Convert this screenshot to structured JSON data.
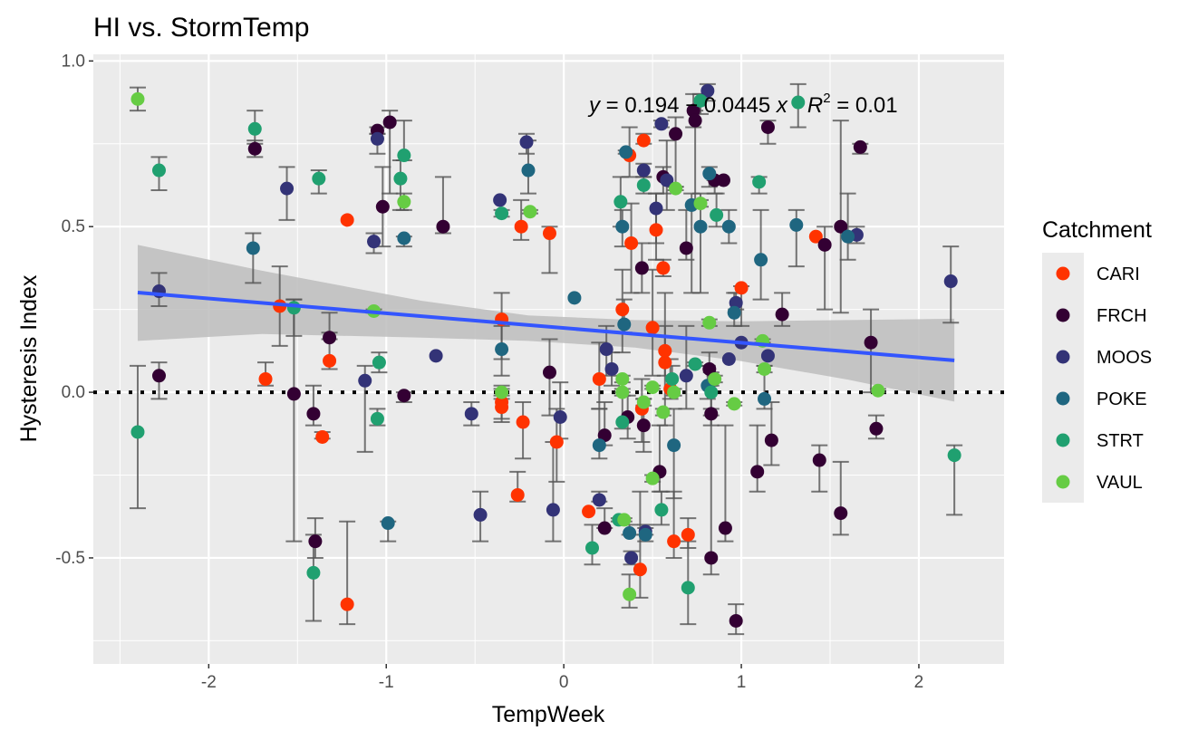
{
  "chart_data": {
    "type": "scatter",
    "title": "HI vs. StormTemp",
    "xlabel": "TempWeek",
    "ylabel": "Hysteresis Index",
    "xlim": [
      -2.65,
      2.48
    ],
    "ylim": [
      -0.82,
      1.02
    ],
    "x_ticks": [
      -2,
      -1,
      0,
      1,
      2
    ],
    "x_tick_labels": [
      "-2",
      "-1",
      "0",
      "1",
      "2"
    ],
    "y_ticks": [
      -0.5,
      0.0,
      0.5,
      1.0
    ],
    "y_tick_labels": [
      "-0.5",
      "0.0",
      "0.5",
      "1.0"
    ],
    "grid": true,
    "legend": {
      "title": "Catchment",
      "placement": "right",
      "entries": [
        {
          "name": "CARI",
          "color": "#FF3300"
        },
        {
          "name": "FRCH",
          "color": "#330033"
        },
        {
          "name": "MOOS",
          "color": "#333377"
        },
        {
          "name": "POKE",
          "color": "#1F6680"
        },
        {
          "name": "STRT",
          "color": "#20A070"
        },
        {
          "name": "VAUL",
          "color": "#66CC44"
        }
      ]
    },
    "reference_line": {
      "y": 0,
      "style": "dotted"
    },
    "regression": {
      "intercept": 0.194,
      "slope": -0.0445,
      "x_range": [
        -2.4,
        2.2
      ],
      "ci_lower": [
        0.155,
        0.176,
        0.165,
        0.155,
        0.135,
        0.094,
        0.038,
        -0.028
      ],
      "ci_upper": [
        0.445,
        0.367,
        0.276,
        0.232,
        0.218,
        0.214,
        0.218,
        0.222
      ],
      "ci_x": [
        -2.4,
        -1.7,
        -0.8,
        -0.2,
        0.4,
        1.0,
        1.6,
        2.2
      ],
      "line_color": "#3355FF",
      "band_color": "#BDBDBD"
    },
    "annotation": {
      "y_label": "y",
      "equation": " = 0.194 − 0.0445 ",
      "x_label": "x",
      "r_label": "R",
      "r_exp": "2",
      "r_value": " = 0.01"
    },
    "series": [
      {
        "name": "CARI",
        "color": "#FF3300",
        "points": [
          [
            -1.22,
            0.52,
            0.52,
            0.52
          ],
          [
            -1.6,
            0.26,
            0.38,
            0.14
          ],
          [
            -1.68,
            0.04,
            0.09,
            0.02
          ],
          [
            -1.32,
            0.095,
            0.18,
            0.07
          ],
          [
            -1.36,
            -0.135,
            -0.12,
            -0.14
          ],
          [
            -1.22,
            -0.64,
            -0.39,
            -0.7
          ],
          [
            -0.35,
            0.22,
            0.3,
            0.1
          ],
          [
            -0.35,
            -0.03,
            0.02,
            -0.08
          ],
          [
            -0.35,
            -0.045,
            -0.02,
            -0.09
          ],
          [
            -0.24,
            0.5,
            0.58,
            0.46
          ],
          [
            -0.23,
            -0.09,
            -0.03,
            -0.2
          ],
          [
            -0.26,
            -0.31,
            -0.24,
            -0.33
          ],
          [
            -0.08,
            0.48,
            0.5,
            0.36
          ],
          [
            -0.04,
            -0.15,
            -0.05,
            -0.27
          ],
          [
            0.14,
            -0.36,
            -0.36,
            -0.36
          ],
          [
            0.2,
            0.04,
            0.15,
            -0.05
          ],
          [
            0.33,
            0.25,
            0.37,
            0.12
          ],
          [
            0.37,
            0.715,
            0.8,
            0.65
          ],
          [
            0.38,
            0.45,
            0.57,
            0.3
          ],
          [
            0.45,
            0.76,
            0.78,
            0.75
          ],
          [
            0.5,
            0.195,
            0.37,
            0.05
          ],
          [
            0.52,
            0.49,
            0.6,
            0.4
          ],
          [
            0.56,
            0.375,
            0.4,
            0.35
          ],
          [
            0.57,
            0.09,
            0.3,
            -0.1
          ],
          [
            0.57,
            0.125,
            0.2,
            0.05
          ],
          [
            0.44,
            -0.05,
            0.04,
            -0.15
          ],
          [
            0.6,
            0.01,
            0.1,
            -0.02
          ],
          [
            0.43,
            -0.535,
            -0.3,
            -0.62
          ],
          [
            0.62,
            -0.45,
            -0.3,
            -0.5
          ],
          [
            0.7,
            -0.43,
            -0.38,
            -0.47
          ],
          [
            1.0,
            0.315,
            0.32,
            0.2
          ],
          [
            1.42,
            0.47,
            0.47,
            0.47
          ]
        ]
      },
      {
        "name": "FRCH",
        "color": "#330033",
        "points": [
          [
            -2.28,
            0.05,
            0.09,
            -0.02
          ],
          [
            -1.74,
            0.735,
            0.76,
            0.71
          ],
          [
            -1.52,
            -0.005,
            0.28,
            -0.45
          ],
          [
            -1.41,
            -0.065,
            0.02,
            -0.1
          ],
          [
            -1.4,
            -0.45,
            -0.38,
            -0.5
          ],
          [
            -1.32,
            0.165,
            0.24,
            0.16
          ],
          [
            -1.05,
            0.79,
            0.8,
            0.78
          ],
          [
            -1.02,
            0.56,
            0.68,
            0.44
          ],
          [
            -0.98,
            0.815,
            0.85,
            0.6
          ],
          [
            -0.9,
            -0.01,
            0.0,
            -0.03
          ],
          [
            -0.68,
            0.5,
            0.65,
            0.48
          ],
          [
            -0.08,
            0.06,
            0.16,
            -0.07
          ],
          [
            0.23,
            -0.13,
            -0.03,
            -0.16
          ],
          [
            0.23,
            -0.41,
            -0.35,
            -0.41
          ],
          [
            0.36,
            -0.075,
            -0.01,
            -0.14
          ],
          [
            0.45,
            -0.1,
            -0.02,
            -0.18
          ],
          [
            0.44,
            0.375,
            0.45,
            0.3
          ],
          [
            0.54,
            -0.24,
            -0.1,
            -0.3
          ],
          [
            0.56,
            0.65,
            0.68,
            0.6
          ],
          [
            0.63,
            0.78,
            0.83,
            0.62
          ],
          [
            0.69,
            0.435,
            0.55,
            0.4
          ],
          [
            0.73,
            0.85,
            0.9,
            0.8
          ],
          [
            0.74,
            0.82,
            0.85,
            0.56
          ],
          [
            0.83,
            -0.5,
            -0.05,
            -0.55
          ],
          [
            0.83,
            -0.065,
            0.02,
            -0.1
          ],
          [
            0.9,
            0.64,
            0.64,
            0.64
          ],
          [
            0.91,
            -0.41,
            -0.1,
            -0.45
          ],
          [
            0.85,
            0.64,
            0.64,
            0.6
          ],
          [
            0.97,
            -0.69,
            -0.64,
            -0.73
          ],
          [
            1.09,
            -0.24,
            -0.1,
            -0.3
          ],
          [
            1.15,
            0.8,
            0.82,
            0.75
          ],
          [
            1.17,
            -0.145,
            -0.03,
            -0.22
          ],
          [
            1.23,
            0.235,
            0.3,
            0.2
          ],
          [
            1.47,
            0.445,
            0.5,
            0.25
          ],
          [
            1.56,
            0.5,
            0.82,
            0.24
          ],
          [
            1.56,
            -0.365,
            -0.21,
            -0.43
          ],
          [
            1.67,
            0.74,
            0.75,
            0.72
          ],
          [
            1.44,
            -0.205,
            -0.16,
            -0.3
          ],
          [
            1.73,
            0.15,
            0.25,
            0.0
          ],
          [
            1.76,
            -0.11,
            -0.07,
            -0.14
          ],
          [
            0.82,
            0.07,
            0.12,
            0.02
          ]
        ]
      },
      {
        "name": "MOOS",
        "color": "#333377",
        "points": [
          [
            -2.28,
            0.305,
            0.36,
            0.26
          ],
          [
            -1.56,
            0.615,
            0.68,
            0.52
          ],
          [
            -1.12,
            0.035,
            0.08,
            -0.18
          ],
          [
            -1.07,
            0.455,
            0.48,
            0.42
          ],
          [
            -1.05,
            0.765,
            0.78,
            0.72
          ],
          [
            -0.72,
            0.11,
            0.11,
            0.11
          ],
          [
            -0.52,
            -0.065,
            -0.03,
            -0.1
          ],
          [
            -0.47,
            -0.37,
            -0.3,
            -0.45
          ],
          [
            -0.36,
            0.58,
            0.58,
            0.58
          ],
          [
            -0.21,
            0.755,
            0.78,
            0.72
          ],
          [
            -0.06,
            -0.355,
            -0.15,
            -0.45
          ],
          [
            -0.02,
            -0.075,
            0.03,
            -0.14
          ],
          [
            0.2,
            -0.325,
            -0.3,
            -0.33
          ],
          [
            0.24,
            0.13,
            0.2,
            0.05
          ],
          [
            0.27,
            0.07,
            0.12,
            0.02
          ],
          [
            0.38,
            -0.5,
            -0.48,
            -0.52
          ],
          [
            0.45,
            0.67,
            0.69,
            0.65
          ],
          [
            0.46,
            -0.42,
            -0.4,
            -0.43
          ],
          [
            0.52,
            0.555,
            0.6,
            0.45
          ],
          [
            0.55,
            0.81,
            0.82,
            0.8
          ],
          [
            0.58,
            0.64,
            0.76,
            0.55
          ],
          [
            0.69,
            0.05,
            0.2,
            -0.05
          ],
          [
            0.81,
            0.91,
            0.93,
            0.88
          ],
          [
            0.93,
            0.1,
            0.1,
            0.1
          ],
          [
            0.97,
            0.27,
            0.3,
            0.25
          ],
          [
            1.0,
            0.15,
            0.15,
            0.15
          ],
          [
            1.15,
            0.11,
            0.11,
            0.11
          ],
          [
            1.65,
            0.475,
            0.5,
            0.45
          ],
          [
            2.18,
            0.335,
            0.44,
            0.21
          ]
        ]
      },
      {
        "name": "POKE",
        "color": "#1F6680",
        "points": [
          [
            -1.75,
            0.435,
            0.48,
            0.33
          ],
          [
            -0.99,
            -0.395,
            -0.39,
            -0.45
          ],
          [
            -0.9,
            0.465,
            0.47,
            0.44
          ],
          [
            -0.35,
            0.13,
            0.2,
            0.05
          ],
          [
            -0.2,
            0.67,
            0.76,
            0.6
          ],
          [
            0.06,
            0.285,
            0.285,
            0.285
          ],
          [
            0.2,
            -0.16,
            -0.05,
            -0.2
          ],
          [
            0.33,
            0.5,
            0.55,
            0.44
          ],
          [
            0.34,
            0.205,
            0.28,
            0.18
          ],
          [
            0.35,
            0.725,
            0.73,
            0.72
          ],
          [
            0.37,
            -0.425,
            -0.4,
            -0.43
          ],
          [
            0.46,
            -0.43,
            -0.41,
            -0.45
          ],
          [
            0.62,
            -0.16,
            -0.05,
            -0.32
          ],
          [
            0.72,
            0.565,
            0.6,
            0.3
          ],
          [
            0.77,
            0.5,
            0.6,
            0.3
          ],
          [
            0.82,
            0.66,
            0.68,
            0.62
          ],
          [
            0.93,
            0.5,
            0.55,
            0.45
          ],
          [
            0.96,
            0.24,
            0.3,
            0.2
          ],
          [
            1.11,
            0.4,
            0.55,
            0.28
          ],
          [
            1.13,
            -0.02,
            0.08,
            -0.05
          ],
          [
            1.31,
            0.505,
            0.55,
            0.38
          ],
          [
            1.6,
            0.47,
            0.6,
            0.4
          ],
          [
            0.81,
            0.02,
            0.08,
            -0.02
          ]
        ]
      },
      {
        "name": "STRT",
        "color": "#20A070",
        "points": [
          [
            -2.4,
            -0.12,
            0.08,
            -0.35
          ],
          [
            -2.28,
            0.67,
            0.71,
            0.61
          ],
          [
            -1.74,
            0.795,
            0.85,
            0.75
          ],
          [
            -1.52,
            0.255,
            0.28,
            0.17
          ],
          [
            -1.38,
            0.645,
            0.67,
            0.6
          ],
          [
            -1.41,
            -0.545,
            -0.43,
            -0.69
          ],
          [
            -1.05,
            -0.08,
            -0.05,
            -0.1
          ],
          [
            -1.04,
            0.09,
            0.12,
            0.06
          ],
          [
            -0.92,
            0.645,
            0.7,
            0.55
          ],
          [
            -0.9,
            0.715,
            0.82,
            0.7
          ],
          [
            -0.35,
            0.54,
            0.55,
            0.53
          ],
          [
            0.16,
            -0.47,
            -0.4,
            -0.52
          ],
          [
            0.31,
            -0.385,
            -0.38,
            -0.39
          ],
          [
            0.32,
            0.575,
            0.65,
            0.5
          ],
          [
            0.33,
            -0.09,
            0.0,
            -0.11
          ],
          [
            0.45,
            0.625,
            0.65,
            0.6
          ],
          [
            0.55,
            -0.355,
            -0.3,
            -0.4
          ],
          [
            0.61,
            0.04,
            0.08,
            0.01
          ],
          [
            0.7,
            -0.59,
            -0.45,
            -0.7
          ],
          [
            0.74,
            0.085,
            0.09,
            0.08
          ],
          [
            0.77,
            0.88,
            0.9,
            0.84
          ],
          [
            0.83,
            0.0,
            0.06,
            -0.07
          ],
          [
            0.86,
            0.535,
            0.6,
            0.5
          ],
          [
            1.1,
            0.635,
            0.65,
            0.6
          ],
          [
            1.32,
            0.875,
            0.93,
            0.8
          ],
          [
            2.2,
            -0.19,
            -0.16,
            -0.37
          ]
        ]
      },
      {
        "name": "VAUL",
        "color": "#66CC44",
        "points": [
          [
            -2.4,
            0.885,
            0.92,
            0.85
          ],
          [
            -1.07,
            0.245,
            0.25,
            0.24
          ],
          [
            -0.9,
            0.575,
            0.6,
            0.55
          ],
          [
            -0.35,
            0.0,
            0.01,
            -0.01
          ],
          [
            -0.19,
            0.545,
            0.55,
            0.54
          ],
          [
            0.33,
            0.0,
            0.01,
            -0.01
          ],
          [
            0.33,
            0.04,
            0.05,
            0.03
          ],
          [
            0.34,
            -0.385,
            -0.38,
            -0.39
          ],
          [
            0.37,
            -0.61,
            -0.55,
            -0.65
          ],
          [
            0.45,
            -0.03,
            -0.02,
            -0.04
          ],
          [
            0.5,
            -0.26,
            -0.25,
            -0.27
          ],
          [
            0.5,
            0.015,
            0.02,
            0.01
          ],
          [
            0.56,
            -0.06,
            -0.05,
            -0.07
          ],
          [
            0.62,
            -0.0,
            0.01,
            -0.01
          ],
          [
            0.63,
            0.615,
            0.62,
            0.61
          ],
          [
            0.77,
            0.57,
            0.58,
            0.56
          ],
          [
            0.82,
            0.21,
            0.22,
            0.2
          ],
          [
            0.85,
            0.04,
            0.05,
            0.03
          ],
          [
            0.96,
            -0.035,
            -0.03,
            -0.04
          ],
          [
            1.12,
            0.155,
            0.16,
            0.15
          ],
          [
            1.13,
            0.07,
            0.08,
            0.06
          ],
          [
            1.77,
            0.005,
            0.01,
            0.0
          ]
        ]
      }
    ]
  }
}
